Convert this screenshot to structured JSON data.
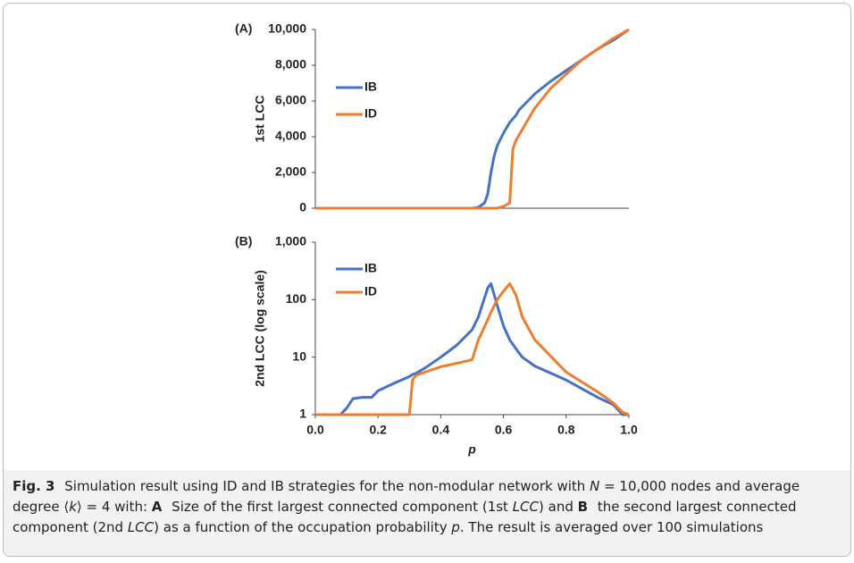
{
  "chart_data": [
    {
      "type": "line",
      "label": "(A)",
      "ylabel": "1st LCC",
      "x": [
        0,
        0.1,
        0.2,
        0.3,
        0.4,
        0.5,
        0.52,
        0.54,
        0.55,
        0.56,
        0.57,
        0.58,
        0.6,
        0.61,
        0.62,
        0.63,
        0.64,
        0.65,
        0.7,
        0.75,
        0.8,
        0.85,
        0.9,
        0.95,
        1.0
      ],
      "series": [
        {
          "name": "IB",
          "color": "#4472c4",
          "values": [
            0,
            0,
            0,
            0,
            0,
            0,
            50,
            300,
            800,
            2000,
            2900,
            3500,
            4200,
            4500,
            4800,
            5000,
            5200,
            5500,
            6400,
            7100,
            7700,
            8300,
            8900,
            9400,
            10000
          ]
        },
        {
          "name": "ID",
          "color": "#ed7d31",
          "values": [
            0,
            0,
            0,
            0,
            0,
            0,
            0,
            0,
            0,
            0,
            0,
            0,
            100,
            200,
            300,
            3300,
            3800,
            4100,
            5600,
            6700,
            7500,
            8300,
            8900,
            9500,
            10000
          ]
        }
      ],
      "xlim": [
        0,
        1
      ],
      "ylim": [
        0,
        10000
      ],
      "yticks": [
        0,
        {
          "value": 2000,
          "label": "2,000"
        },
        {
          "value": 4000,
          "label": "4,000"
        },
        {
          "value": 6000,
          "label": "6,000"
        },
        {
          "value": 8000,
          "label": "8,000"
        },
        {
          "value": 10000,
          "label": "10,000"
        }
      ],
      "log_scale": false
    },
    {
      "type": "line",
      "label": "(B)",
      "ylabel": "2nd LCC (log scale)",
      "xlabel": "p",
      "x": [
        0,
        0.08,
        0.1,
        0.12,
        0.15,
        0.18,
        0.2,
        0.25,
        0.3,
        0.31,
        0.32,
        0.35,
        0.4,
        0.45,
        0.5,
        0.52,
        0.55,
        0.56,
        0.58,
        0.6,
        0.62,
        0.64,
        0.66,
        0.7,
        0.8,
        0.9,
        0.95,
        0.98,
        1.0
      ],
      "series": [
        {
          "name": "IB",
          "color": "#4472c4",
          "values": [
            1,
            1,
            1.3,
            1.9,
            2,
            2,
            2.6,
            3.5,
            4.6,
            5,
            5.2,
            6.5,
            10,
            16,
            30,
            50,
            160,
            190,
            80,
            35,
            20,
            14,
            10,
            7,
            4,
            2,
            1.5,
            1,
            1
          ]
        },
        {
          "name": "ID",
          "color": "#ed7d31",
          "values": [
            1,
            1,
            1,
            1,
            1,
            1,
            1,
            1,
            1,
            4,
            4.8,
            5.5,
            6.8,
            7.8,
            9,
            20,
            45,
            60,
            100,
            140,
            190,
            120,
            50,
            20,
            5.5,
            2.5,
            1.6,
            1.1,
            1
          ]
        }
      ],
      "xlim": [
        0,
        1
      ],
      "ylim": [
        1,
        1000
      ],
      "xticks": [
        {
          "value": 0,
          "label": "0.0"
        },
        0.2,
        0.4,
        0.6,
        0.8,
        {
          "value": 1,
          "label": "1.0"
        }
      ],
      "yticks": [
        1,
        10,
        100,
        {
          "value": 1000,
          "label": "1,000"
        }
      ],
      "log_scale": true
    }
  ],
  "caption": [
    {
      "text": "Fig. 3",
      "style": "b"
    },
    {
      "text": " Simulation result using ID and IB strategies for the non-modular network with "
    },
    {
      "text": "N",
      "style": "i"
    },
    {
      "text": " = 10,000 nodes and average degree ⟨"
    },
    {
      "text": "k",
      "style": "i"
    },
    {
      "text": "⟩ = 4 with: "
    },
    {
      "text": "A",
      "style": "b"
    },
    {
      "text": " Size of the first largest connected component (1st "
    },
    {
      "text": "LCC",
      "style": "i"
    },
    {
      "text": ") and "
    },
    {
      "text": "B",
      "style": "b"
    },
    {
      "text": " the second largest connected component (2nd "
    },
    {
      "text": "LCC",
      "style": "i"
    },
    {
      "text": ") as a function of the occupation probability "
    },
    {
      "text": "p",
      "style": "i"
    },
    {
      "text": ". The result is averaged over 100 simulations"
    }
  ]
}
